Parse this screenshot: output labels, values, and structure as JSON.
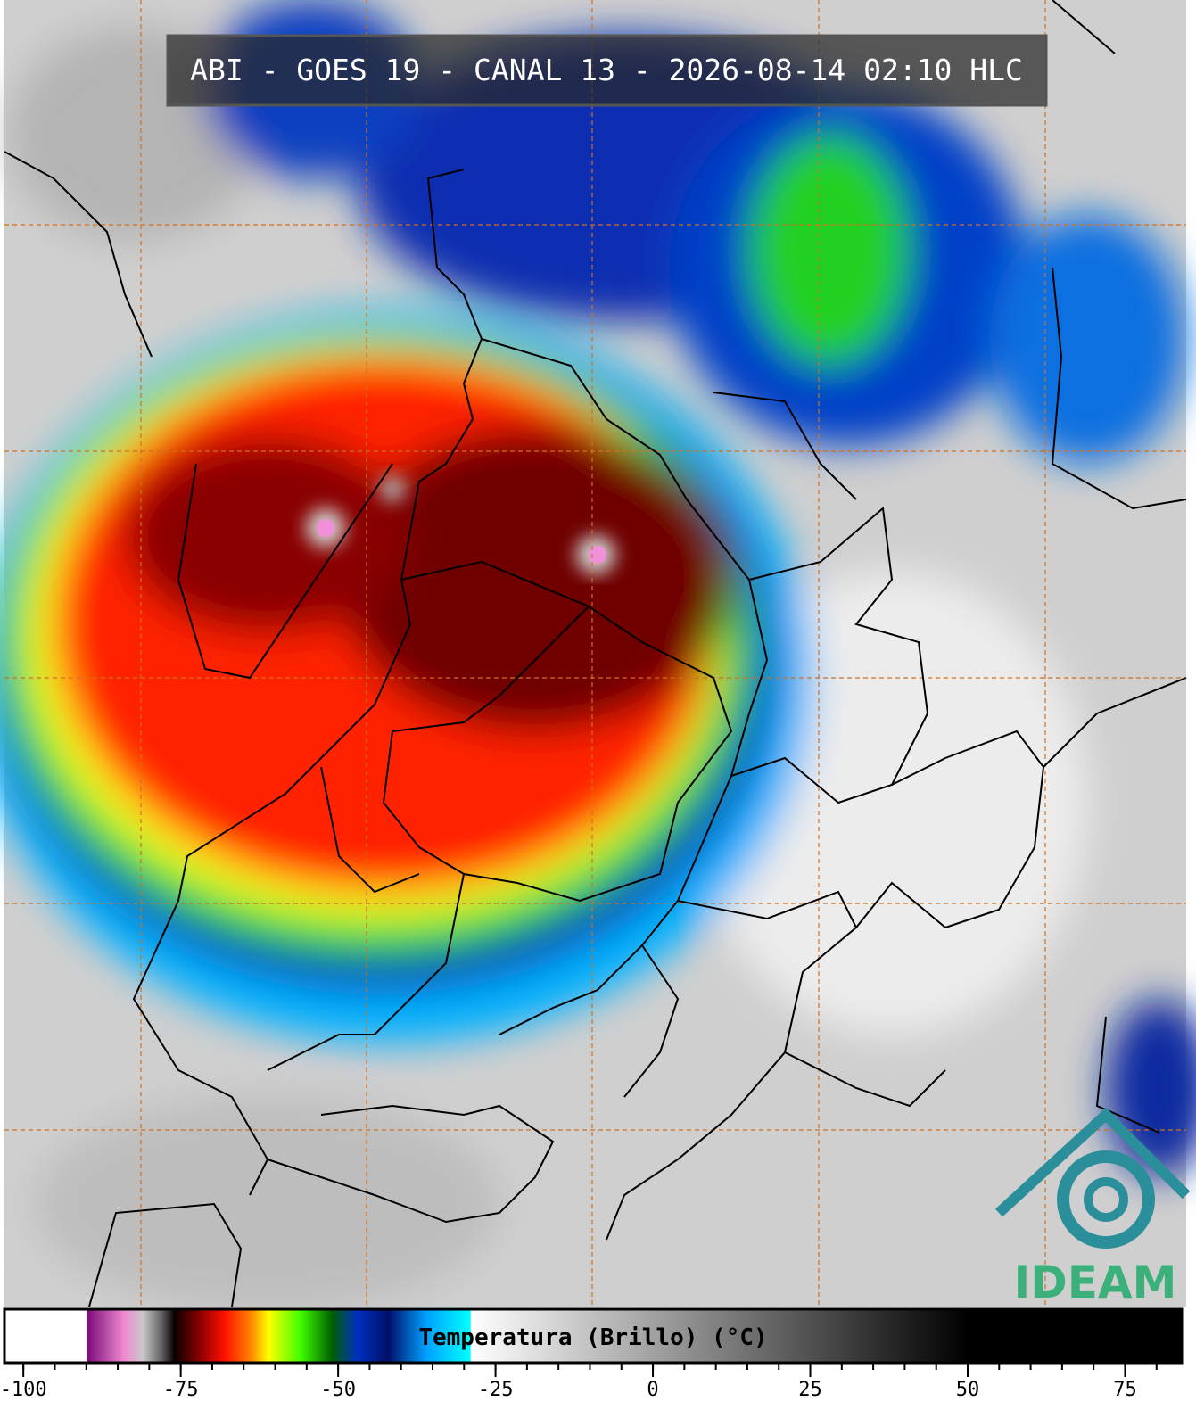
{
  "title": "ABI - GOES 19 - CANAL 13 - 2026-08-14 02:10 HLC",
  "logo": "IDEAM",
  "colorbar": {
    "label": "Temperatura (Brillo) (°C)",
    "lim": [
      -103,
      84
    ],
    "ticks": [
      -100,
      -75,
      -50,
      -25,
      0,
      25,
      50,
      75
    ],
    "minor_tick_step": 5,
    "stops": [
      {
        "value": -103,
        "color": "#ffffff"
      },
      {
        "value": -90,
        "color": "#ffffff"
      },
      {
        "value": -89.9,
        "color": "#7a0a7a"
      },
      {
        "value": -84,
        "color": "#f08ad0"
      },
      {
        "value": -81,
        "color": "#c8c8c8"
      },
      {
        "value": -78,
        "color": "#606060"
      },
      {
        "value": -76,
        "color": "#0a0000"
      },
      {
        "value": -72,
        "color": "#8a0000"
      },
      {
        "value": -68,
        "color": "#ff1000"
      },
      {
        "value": -64,
        "color": "#ff8000"
      },
      {
        "value": -61,
        "color": "#ffff00"
      },
      {
        "value": -56,
        "color": "#40ff00"
      },
      {
        "value": -51,
        "color": "#006000"
      },
      {
        "value": -47,
        "color": "#0030c0"
      },
      {
        "value": -42,
        "color": "#00106a"
      },
      {
        "value": -36,
        "color": "#00a0ff"
      },
      {
        "value": -29,
        "color": "#00ffff"
      },
      {
        "value": -28.9,
        "color": "#ffffff"
      },
      {
        "value": 50,
        "color": "#000000"
      },
      {
        "value": 84,
        "color": "#000000"
      }
    ]
  }
}
